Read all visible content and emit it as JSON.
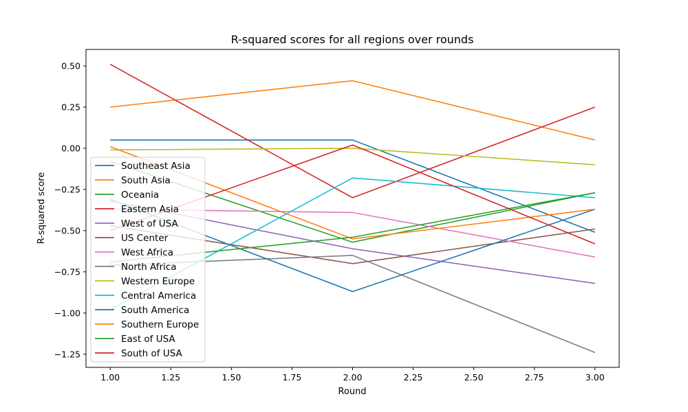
{
  "chart_data": {
    "type": "line",
    "title": "R-squared scores for all regions over rounds",
    "xlabel": "Round",
    "ylabel": "R-squared score",
    "x": [
      1,
      2,
      3
    ],
    "xlim": [
      0.9,
      3.1
    ],
    "ylim": [
      -1.33,
      0.6
    ],
    "xticks": [
      "1.00",
      "1.25",
      "1.50",
      "1.75",
      "2.00",
      "2.25",
      "2.50",
      "2.75",
      "3.00"
    ],
    "xtick_values": [
      1.0,
      1.25,
      1.5,
      1.75,
      2.0,
      2.25,
      2.5,
      2.75,
      3.0
    ],
    "yticks": [
      "0.50",
      "0.25",
      "0.00",
      "−0.25",
      "−0.50",
      "−0.75",
      "−1.00",
      "−1.25"
    ],
    "ytick_values": [
      0.5,
      0.25,
      0.0,
      -0.25,
      -0.5,
      -0.75,
      -1.0,
      -1.25
    ],
    "grid": false,
    "legend_position": "lower-left",
    "series": [
      {
        "name": "Southeast Asia",
        "color": "#1f77b4",
        "values": [
          0.05,
          0.05,
          -0.51
        ]
      },
      {
        "name": "South Asia",
        "color": "#ff7f0e",
        "values": [
          0.25,
          0.41,
          0.05
        ]
      },
      {
        "name": "Oceania",
        "color": "#2ca02c",
        "values": [
          -0.08,
          -0.57,
          -0.27
        ]
      },
      {
        "name": "Eastern Asia",
        "color": "#d62728",
        "values": [
          0.51,
          -0.3,
          0.25
        ]
      },
      {
        "name": "West of USA",
        "color": "#9467bd",
        "values": [
          -0.32,
          -0.61,
          -0.82
        ]
      },
      {
        "name": "US Center",
        "color": "#8c564b",
        "values": [
          -0.47,
          -0.7,
          -0.49
        ]
      },
      {
        "name": "West Africa",
        "color": "#e377c2",
        "values": [
          -0.37,
          -0.39,
          -0.66
        ]
      },
      {
        "name": "North Africa",
        "color": "#7f7f7f",
        "values": [
          -0.71,
          -0.65,
          -1.24
        ]
      },
      {
        "name": "Western Europe",
        "color": "#bcbd22",
        "values": [
          -0.01,
          0.0,
          -0.1
        ]
      },
      {
        "name": "Central America",
        "color": "#17becf",
        "values": [
          -0.98,
          -0.18,
          -0.3
        ]
      },
      {
        "name": "South America",
        "color": "#1f77b4",
        "values": [
          -0.31,
          -0.87,
          -0.37
        ]
      },
      {
        "name": "Southern Europe",
        "color": "#ff7f0e",
        "values": [
          0.01,
          -0.55,
          -0.37
        ]
      },
      {
        "name": "East of USA",
        "color": "#2ca02c",
        "values": [
          -0.69,
          -0.54,
          -0.27
        ]
      },
      {
        "name": "South of USA",
        "color": "#d62728",
        "values": [
          -0.5,
          0.02,
          -0.58
        ]
      }
    ]
  }
}
